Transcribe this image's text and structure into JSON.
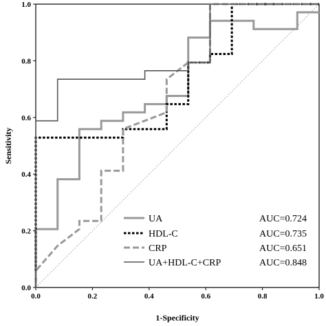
{
  "chart_data": {
    "type": "line",
    "xlabel": "1-Specificity",
    "ylabel": "Sensitivity",
    "xlim": [
      0,
      1
    ],
    "ylim": [
      0,
      1
    ],
    "xticks": [
      "0.0",
      "0.2",
      "0.4",
      "0.6",
      "0.8",
      "1.0"
    ],
    "yticks": [
      "0.0",
      "0.2",
      "0.4",
      "0.6",
      "0.8",
      "1.0"
    ],
    "grid": false,
    "legend_position": "bottom-right",
    "reference_line": {
      "x": [
        0,
        1
      ],
      "y": [
        0,
        1
      ],
      "color": "#999999",
      "style": "dotted"
    },
    "series": [
      {
        "name": "UA",
        "auc_label": "AUC=0.724",
        "color": "#999999",
        "style": "solid-thick",
        "x": [
          0,
          0,
          0.077,
          0.077,
          0.154,
          0.154,
          0.231,
          0.231,
          0.308,
          0.308,
          0.385,
          0.385,
          0.462,
          0.462,
          0.538,
          0.538,
          0.615,
          0.615,
          0.769,
          0.769,
          0.923,
          0.923,
          1.0
        ],
        "y": [
          0,
          0.206,
          0.206,
          0.382,
          0.382,
          0.559,
          0.559,
          0.588,
          0.588,
          0.618,
          0.618,
          0.647,
          0.647,
          0.676,
          0.676,
          0.882,
          0.882,
          0.941,
          0.941,
          0.912,
          0.912,
          0.971,
          0.971
        ]
      },
      {
        "name": "HDL-C",
        "auc_label": "AUC=0.735",
        "color": "#000000",
        "style": "dotted-thick",
        "x": [
          0,
          0,
          0.308,
          0.308,
          0.462,
          0.462,
          0.538,
          0.538,
          0.615,
          0.615,
          0.692,
          0.692,
          1.0
        ],
        "y": [
          0,
          0.529,
          0.529,
          0.559,
          0.559,
          0.647,
          0.647,
          0.794,
          0.794,
          0.824,
          0.824,
          1.0,
          1.0
        ]
      },
      {
        "name": "CRP",
        "auc_label": "AUC=0.651",
        "color": "#999999",
        "style": "dashed-thick",
        "x": [
          0,
          0,
          0.077,
          0.154,
          0.154,
          0.231,
          0.231,
          0.308,
          0.308,
          0.462,
          0.462,
          0.538,
          0.538,
          0.615,
          0.615,
          1.0
        ],
        "y": [
          0,
          0.059,
          0.147,
          0.206,
          0.235,
          0.235,
          0.412,
          0.412,
          0.559,
          0.618,
          0.735,
          0.794,
          0.794,
          0.794,
          1.0,
          1.0
        ]
      },
      {
        "name": "UA+HDL-C+CRP",
        "auc_label": "AUC=0.848",
        "color": "#555555",
        "style": "solid-thin",
        "x": [
          0,
          0,
          0.077,
          0.077,
          0.385,
          0.385,
          0.538,
          0.538,
          0.615,
          0.615,
          1.0
        ],
        "y": [
          0,
          0.588,
          0.588,
          0.735,
          0.735,
          0.765,
          0.765,
          0.794,
          0.794,
          1.0,
          1.0
        ]
      }
    ]
  }
}
